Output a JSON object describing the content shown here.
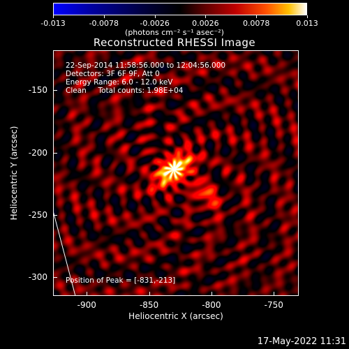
{
  "colorbar": {
    "tick_labels": [
      "-0.013",
      "-0.0078",
      "-0.0026",
      "0.0026",
      "0.0078",
      "0.013"
    ],
    "unit_label": "(photons cm⁻² s⁻¹ asec⁻²)",
    "range": [
      -0.013,
      0.013
    ]
  },
  "title": "Reconstructed RHESSI Image",
  "info": {
    "time": "22-Sep-2014 11:58:56.000 to 12:04:56.000",
    "detectors": "Detectors: 3F 6F 9F, Att 0",
    "energy": "Energy Range: 6.0 - 12.0 keV",
    "clean": "Clean     Total counts: 1.98E+04"
  },
  "peak_label": "Position of Peak = [-831,-213]",
  "axes": {
    "xlabel": "Heliocentric X (arcsec)",
    "ylabel": "Heliocentric Y (arcsec)",
    "x_ticks": [
      "-900",
      "-850",
      "-800",
      "-750"
    ],
    "y_ticks": [
      "-150",
      "-200",
      "-250",
      "-300"
    ],
    "x_range": [
      -927,
      -730
    ],
    "y_range": [
      -118,
      -315
    ]
  },
  "chart_data": {
    "type": "heatmap",
    "peak": {
      "x": -831,
      "y": -213
    },
    "xlim": [
      -927,
      -730
    ],
    "ylim": [
      -315,
      -118
    ]
  },
  "timestamp": "17-May-2022 11:31"
}
